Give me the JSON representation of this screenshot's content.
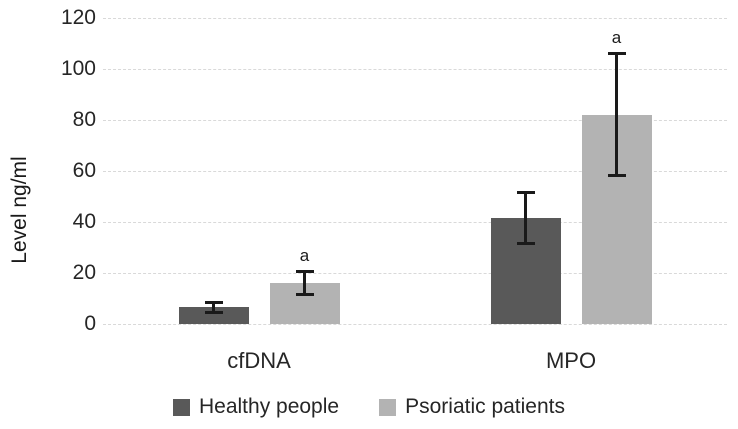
{
  "chart_data": {
    "type": "bar",
    "title": "",
    "categories": [
      "cfDNA",
      "MPO"
    ],
    "series": [
      {
        "name": "Healthy people",
        "color": "#595959",
        "values": [
          6.5,
          41.5
        ],
        "errors": [
          2.5,
          10.5
        ],
        "point_labels": [
          "",
          ""
        ]
      },
      {
        "name": "Psoriatic patients",
        "color": "#b3b3b3",
        "values": [
          16,
          82
        ],
        "errors": [
          5,
          24.5
        ],
        "point_labels": [
          "a",
          "a"
        ]
      }
    ],
    "xlabel": "",
    "ylabel": "Level ng/ml",
    "ylim": [
      0,
      120
    ],
    "yticks": [
      0,
      20,
      40,
      60,
      80,
      100,
      120
    ],
    "grid": true,
    "gridline_color": "#d9d9d9",
    "error_bar_color": "#1a1a1a",
    "text_color": "#262626",
    "background_color": "#ffffff",
    "legend_position": "bottom"
  }
}
